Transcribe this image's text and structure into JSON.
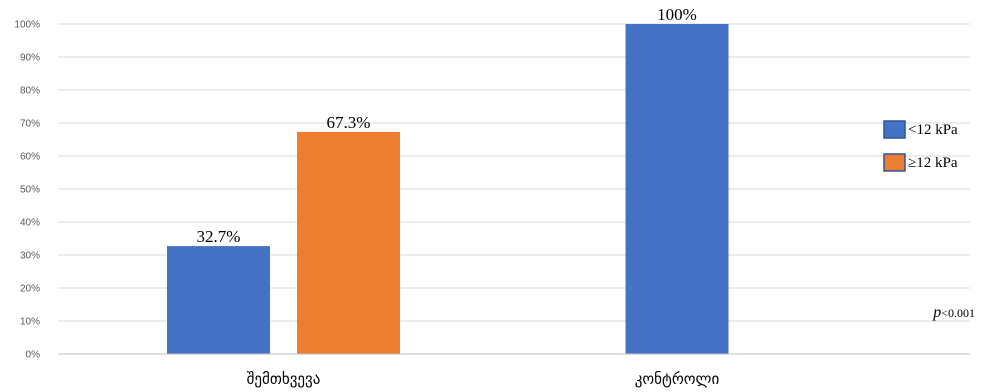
{
  "chart_data": {
    "type": "bar",
    "categories": [
      "შემთხვევა",
      "კონტროლი"
    ],
    "series": [
      {
        "name": "<12 kPa",
        "color": "#4472C4",
        "values": [
          32.7,
          100
        ]
      },
      {
        "name": "≥12 kPa",
        "color": "#ED7D31",
        "values": [
          67.3,
          null
        ]
      }
    ],
    "data_labels": [
      [
        "32.7%",
        "100%"
      ],
      [
        "67.3%",
        ""
      ]
    ],
    "ylim": [
      0,
      100
    ],
    "yticks": [
      "0%",
      "10%",
      "20%",
      "30%",
      "40%",
      "50%",
      "60%",
      "70%",
      "80%",
      "90%",
      "100%"
    ],
    "grid": true,
    "legend_position": "right",
    "annotation": {
      "italic": "p",
      "rest": "<0.001"
    }
  }
}
